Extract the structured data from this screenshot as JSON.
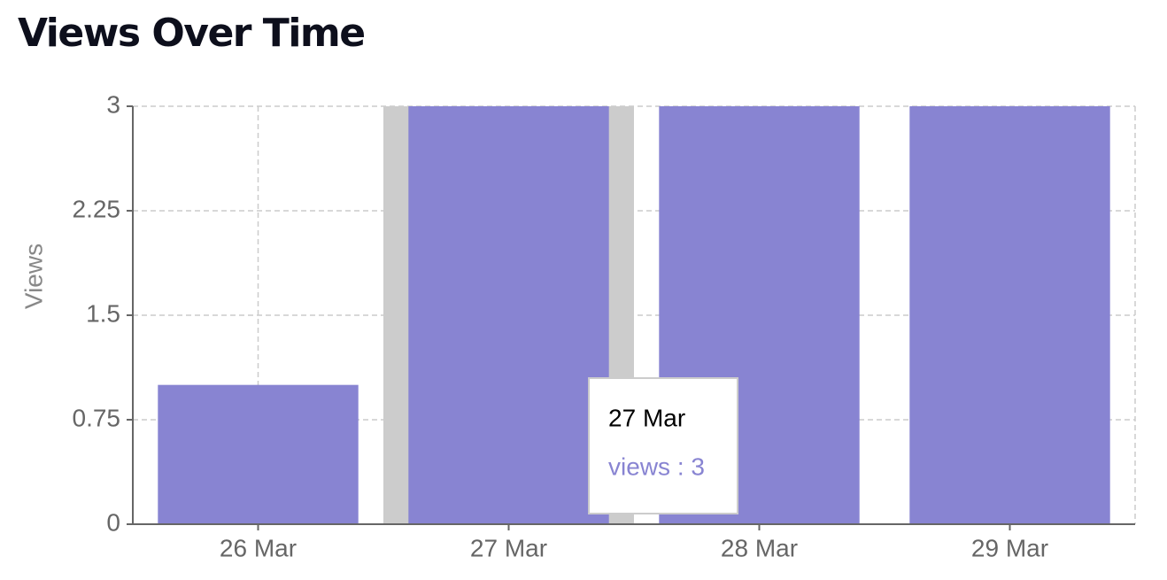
{
  "chart_data": {
    "type": "bar",
    "title": "Views Over Time",
    "y_label": "Views",
    "categories": [
      "26 Mar",
      "27 Mar",
      "28 Mar",
      "29 Mar"
    ],
    "values": [
      1,
      3,
      3,
      3
    ],
    "color": "#8884d2",
    "ylim": [
      0,
      3
    ],
    "yticks": [
      0,
      0.75,
      1.5,
      2.25,
      3
    ],
    "grid": true,
    "tooltip": {
      "title": "27 Mar",
      "text": "views : 3"
    }
  }
}
